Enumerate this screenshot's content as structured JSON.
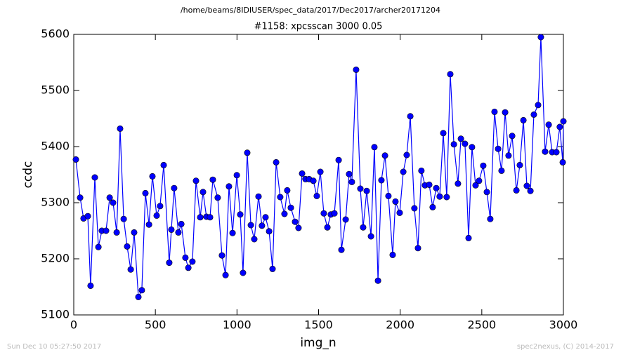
{
  "chart_data": {
    "type": "line",
    "title": "/home/beams/8IDIUSER/spec_data/2017/Dec2017/archer20171204",
    "subtitle": "#1158: xpcsscan 3000 0.05",
    "x_label": "img_n",
    "y_label": "ccdc",
    "footer_left": "Sun Dec 10 05:27:50 2017",
    "footer_right": "spec2nexus, (C) 2014-2017",
    "x": [
      13,
      39,
      60,
      86,
      103,
      129,
      151,
      172,
      198,
      220,
      241,
      263,
      284,
      306,
      327,
      349,
      370,
      396,
      417,
      439,
      461,
      482,
      508,
      529,
      551,
      585,
      598,
      615,
      641,
      659,
      684,
      702,
      727,
      749,
      775,
      792,
      813,
      835,
      852,
      882,
      908,
      930,
      951,
      973,
      999,
      1020,
      1037,
      1063,
      1085,
      1106,
      1132,
      1153,
      1175,
      1197,
      1218,
      1240,
      1265,
      1291,
      1308,
      1330,
      1356,
      1377,
      1399,
      1420,
      1442,
      1468,
      1489,
      1511,
      1532,
      1554,
      1575,
      1597,
      1623,
      1640,
      1666,
      1687,
      1704,
      1730,
      1756,
      1773,
      1795,
      1821,
      1842,
      1864,
      1885,
      1907,
      1928,
      1954,
      1971,
      1997,
      2019,
      2040,
      2062,
      2087,
      2109,
      2130,
      2152,
      2178,
      2199,
      2221,
      2242,
      2264,
      2285,
      2307,
      2329,
      2354,
      2372,
      2397,
      2419,
      2440,
      2462,
      2483,
      2509,
      2531,
      2552,
      2578,
      2600,
      2621,
      2643,
      2664,
      2686,
      2712,
      2733,
      2755,
      2776,
      2798,
      2819,
      2845,
      2862,
      2888,
      2910,
      2931,
      2957,
      2978,
      2996,
      3000
    ],
    "series": [
      {
        "name": "ccdc",
        "color": "#0000ff",
        "values": [
          5377,
          5309,
          5272,
          5276,
          5152,
          5345,
          5221,
          5250,
          5250,
          5309,
          5300,
          5247,
          5432,
          5271,
          5222,
          5181,
          5247,
          5132,
          5144,
          5317,
          5261,
          5347,
          5277,
          5294,
          5367,
          5193,
          5252,
          5326,
          5247,
          5262,
          5202,
          5184,
          5195,
          5339,
          5274,
          5319,
          5275,
          5274,
          5341,
          5309,
          5206,
          5171,
          5329,
          5246,
          5349,
          5279,
          5175,
          5389,
          5260,
          5235,
          5311,
          5259,
          5274,
          5249,
          5182,
          5372,
          5310,
          5280,
          5322,
          5291,
          5266,
          5255,
          5352,
          5342,
          5342,
          5339,
          5312,
          5355,
          5281,
          5256,
          5279,
          5281,
          5376,
          5216,
          5270,
          5351,
          5337,
          5537,
          5325,
          5256,
          5321,
          5240,
          5399,
          5161,
          5340,
          5384,
          5312,
          5207,
          5302,
          5282,
          5355,
          5385,
          5454,
          5290,
          5219,
          5357,
          5331,
          5332,
          5292,
          5326,
          5311,
          5424,
          5310,
          5529,
          5404,
          5334,
          5414,
          5405,
          5237,
          5399,
          5331,
          5339,
          5366,
          5319,
          5271,
          5462,
          5396,
          5357,
          5461,
          5384,
          5419,
          5322,
          5367,
          5447,
          5330,
          5321,
          5457,
          5474,
          5595,
          5391,
          5439,
          5390,
          5390,
          5435,
          5372,
          5445
        ]
      }
    ],
    "xlim": [
      0,
      3000
    ],
    "ylim": [
      5100,
      5600
    ],
    "xticks": [
      0,
      500,
      1000,
      1500,
      2000,
      2500,
      3000
    ],
    "yticks": [
      5100,
      5200,
      5300,
      5400,
      5500,
      5600
    ],
    "grid": false
  }
}
